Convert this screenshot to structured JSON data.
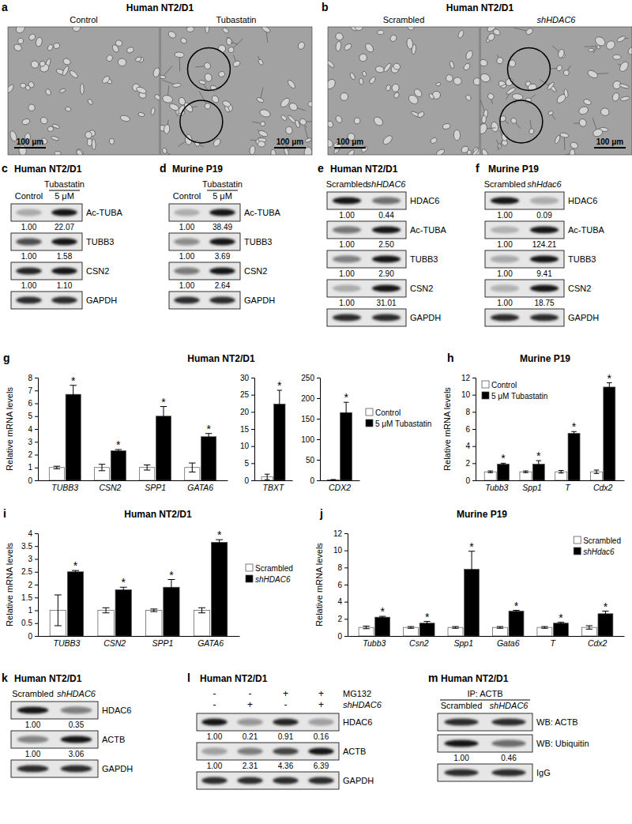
{
  "figure": {
    "images": [
      {
        "label": "a",
        "title": "Human NT2/D1",
        "frames": [
          {
            "caption": "Control",
            "scale_bar": "100 μm"
          },
          {
            "caption": "Tubastatin",
            "scale_bar": "100 μm"
          }
        ]
      },
      {
        "label": "b",
        "title": "Human NT2/D1",
        "frames": [
          {
            "caption": "Scrambled",
            "scale_bar": "100 μm"
          },
          {
            "caption": "shHDAC6",
            "scale_bar": "100 μm"
          }
        ]
      }
    ],
    "blots": [
      {
        "label": "c",
        "title": "Human NT2/D1",
        "lane_groups": [
          {
            "text": null,
            "lanes": [
              "Control"
            ]
          },
          {
            "text": "Tubastatin",
            "lanes": [
              "5 μM"
            ]
          }
        ],
        "rows": [
          {
            "name": "Ac-TUBA",
            "values": [
              1.0,
              22.07
            ],
            "value_labels": [
              "1.00",
              "22.07"
            ]
          },
          {
            "name": "TUBB3",
            "values": [
              1.0,
              1.58
            ],
            "value_labels": [
              "1.00",
              "1.58"
            ]
          },
          {
            "name": "CSN2",
            "values": [
              1.0,
              1.1
            ],
            "value_labels": [
              "1.00",
              "1.10"
            ]
          },
          {
            "name": "GAPDH"
          }
        ]
      },
      {
        "label": "d",
        "title": "Murine P19",
        "lane_groups": [
          {
            "text": null,
            "lanes": [
              "Control"
            ]
          },
          {
            "text": "Tubastatin",
            "lanes": [
              "5 μM"
            ]
          }
        ],
        "rows": [
          {
            "name": "Ac-TUBA",
            "values": [
              1.0,
              38.49
            ],
            "value_labels": [
              "1.00",
              "38.49"
            ]
          },
          {
            "name": "TUBB3",
            "values": [
              1.0,
              3.69
            ],
            "value_labels": [
              "1.00",
              "3.69"
            ]
          },
          {
            "name": "CSN2",
            "values": [
              1.0,
              2.64
            ],
            "value_labels": [
              "1.00",
              "2.64"
            ]
          },
          {
            "name": "GAPDH"
          }
        ]
      },
      {
        "label": "e",
        "title": "Human NT2/D1",
        "lane_groups": [
          {
            "text": null,
            "lanes": [
              "Scrambled",
              "shHDAC6"
            ]
          }
        ],
        "rows": [
          {
            "name": "HDAC6",
            "values": [
              1.0,
              0.44
            ],
            "value_labels": [
              "1.00",
              "0.44"
            ]
          },
          {
            "name": "Ac-TUBA",
            "values": [
              1.0,
              2.5
            ],
            "value_labels": [
              "1.00",
              "2.50"
            ]
          },
          {
            "name": "TUBB3",
            "values": [
              1.0,
              2.9
            ],
            "value_labels": [
              "1.00",
              "2.90"
            ]
          },
          {
            "name": "CSN2",
            "values": [
              1.0,
              31.01
            ],
            "value_labels": [
              "1.00",
              "31.01"
            ]
          },
          {
            "name": "GAPDH"
          }
        ]
      },
      {
        "label": "f",
        "title": "Murine P19",
        "lane_groups": [
          {
            "text": null,
            "lanes": [
              "Scrambled",
              "shHdac6"
            ]
          }
        ],
        "rows": [
          {
            "name": "HDAC6",
            "values": [
              1.0,
              0.09
            ],
            "value_labels": [
              "1.00",
              "0.09"
            ]
          },
          {
            "name": "Ac-TUBA",
            "values": [
              1.0,
              124.21
            ],
            "value_labels": [
              "1.00",
              "124.21"
            ]
          },
          {
            "name": "TUBB3",
            "values": [
              1.0,
              9.41
            ],
            "value_labels": [
              "1.00",
              "9.41"
            ]
          },
          {
            "name": "CSN2",
            "values": [
              1.0,
              18.75
            ],
            "value_labels": [
              "1.00",
              "18.75"
            ]
          },
          {
            "name": "GAPDH"
          }
        ]
      },
      {
        "label": "k",
        "title": "Human NT2/D1",
        "lane_groups": [
          {
            "text": null,
            "lanes": [
              "Scrambled",
              "shHDAC6"
            ]
          }
        ],
        "rows": [
          {
            "name": "HDAC6",
            "values": [
              1.0,
              0.35
            ],
            "value_labels": [
              "1.00",
              "0.35"
            ]
          },
          {
            "name": "ACTB",
            "values": [
              1.0,
              3.06
            ],
            "value_labels": [
              "1.00",
              "3.06"
            ]
          },
          {
            "name": "GAPDH"
          }
        ]
      },
      {
        "label": "l",
        "title": "Human NT2/D1",
        "conditions": [
          {
            "name": "MG132",
            "signs": [
              "-",
              "-",
              "+",
              "+"
            ]
          },
          {
            "name": "shHDAC6",
            "signs": [
              "-",
              "+",
              "-",
              "+"
            ]
          }
        ],
        "rows": [
          {
            "name": "HDAC6",
            "values": [
              1.0,
              0.21,
              0.91,
              0.16
            ],
            "value_labels": [
              "1.00",
              "0.21",
              "0.91",
              "0.16"
            ]
          },
          {
            "name": "ACTB",
            "values": [
              1.0,
              2.31,
              4.36,
              6.39
            ],
            "value_labels": [
              "1.00",
              "2.31",
              "4.36",
              "6.39"
            ]
          },
          {
            "name": "GAPDH"
          }
        ]
      },
      {
        "label": "m",
        "title": "Human NT2/D1",
        "lane_groups": [
          {
            "text": "IP: ACTB",
            "lanes": [
              "Scrambled",
              "shHDAC6"
            ]
          }
        ],
        "rows": [
          {
            "name": "WB: ACTB"
          },
          {
            "name": "WB: Ubiquitin",
            "values": [
              1.0,
              0.46
            ],
            "value_labels": [
              "1.00",
              "0.46"
            ]
          },
          {
            "name": "IgG"
          }
        ]
      }
    ]
  },
  "chart_data": [
    {
      "type": "bar",
      "label": "g",
      "title": "Human NT2/D1",
      "y_label": "Relative mRNA levels",
      "categories": [
        "TUBB3",
        "CSN2",
        "SPP1",
        "GATA6"
      ],
      "ylim": [
        0,
        8
      ],
      "yticks": [
        0,
        1,
        2,
        3,
        4,
        5,
        6,
        7,
        8
      ],
      "series": [
        {
          "color": "#ffffff",
          "values": [
            1,
            1,
            1,
            1
          ],
          "errors": [
            0.1,
            0.25,
            0.2,
            0.35
          ]
        },
        {
          "color": "#000000",
          "values": [
            6.7,
            2.3,
            5.0,
            3.4
          ],
          "errors": [
            0.7,
            0.1,
            0.75,
            0.25
          ],
          "annotations": [
            "*",
            "*",
            "*",
            "*"
          ]
        }
      ]
    },
    {
      "type": "bar",
      "categories": [
        "TBXT"
      ],
      "ylim": [
        0,
        30
      ],
      "yticks": [
        0,
        5,
        10,
        15,
        20,
        25,
        30
      ],
      "series": [
        {
          "color": "#ffffff",
          "values": [
            1
          ],
          "errors": [
            0.8
          ]
        },
        {
          "color": "#000000",
          "values": [
            22.3
          ],
          "errors": [
            4
          ],
          "annotations": [
            "*"
          ]
        }
      ]
    },
    {
      "type": "bar",
      "categories": [
        "CDX2"
      ],
      "ylim": [
        0,
        250
      ],
      "yticks": [
        0,
        50,
        100,
        150,
        200,
        250
      ],
      "legend": "right",
      "series": [
        {
          "name": "Control",
          "color": "#ffffff",
          "values": [
            1
          ],
          "errors": [
            1
          ]
        },
        {
          "name": "5 μM Tubastatin",
          "color": "#000000",
          "values": [
            165
          ],
          "errors": [
            25
          ],
          "annotations": [
            "*"
          ]
        }
      ]
    },
    {
      "type": "bar",
      "label": "h",
      "title": "Murine P19",
      "y_label": "Relative mRNA levels",
      "legend": "upper left",
      "categories": [
        "Tubb3",
        "Spp1",
        "T",
        "Cdx2"
      ],
      "ylim": [
        0,
        12
      ],
      "yticks": [
        0,
        2,
        4,
        6,
        8,
        10,
        12
      ],
      "series": [
        {
          "name": "Control",
          "color": "#ffffff",
          "values": [
            1,
            1,
            1,
            1
          ],
          "errors": [
            0.1,
            0.1,
            0.15,
            0.2
          ]
        },
        {
          "name": "5 μM Tubastatin",
          "color": "#000000",
          "values": [
            1.9,
            1.9,
            5.5,
            10.9
          ],
          "errors": [
            0.1,
            0.4,
            0.2,
            0.5
          ],
          "annotations": [
            "*",
            "*",
            "*",
            "*"
          ]
        }
      ]
    },
    {
      "type": "bar",
      "label": "i",
      "title": "Human NT2/D1",
      "y_label": "Relative mRNA levels",
      "legend": "right",
      "categories": [
        "TUBB3",
        "CSN2",
        "SPP1",
        "GATA6"
      ],
      "ylim": [
        0,
        4
      ],
      "yticks": [
        0,
        0.5,
        1,
        1.5,
        2,
        2.5,
        3,
        3.5,
        4
      ],
      "series": [
        {
          "name": "Scrambled",
          "color": "#ffffff",
          "values": [
            1,
            1,
            1,
            1
          ],
          "errors": [
            0.6,
            0.1,
            0.05,
            0.1
          ]
        },
        {
          "name": "shHDAC6",
          "color": "#000000",
          "values": [
            2.5,
            1.8,
            1.9,
            3.65
          ],
          "errors": [
            0.05,
            0.1,
            0.3,
            0.1
          ],
          "annotations": [
            "*",
            "*",
            "*",
            "*"
          ]
        }
      ]
    },
    {
      "type": "bar",
      "label": "j",
      "title": "Murine P19",
      "y_label": "Relative mRNA levels",
      "legend": "upper right",
      "categories": [
        "Tubb3",
        "Csn2",
        "Spp1",
        "Gata6",
        "T",
        "Cdx2"
      ],
      "ylim": [
        0,
        12
      ],
      "yticks": [
        0,
        2,
        4,
        6,
        8,
        10,
        12
      ],
      "series": [
        {
          "name": "Scrambled",
          "color": "#ffffff",
          "values": [
            1,
            1,
            1,
            1,
            1,
            1
          ],
          "errors": [
            0.15,
            0.1,
            0.1,
            0.1,
            0.1,
            0.2
          ]
        },
        {
          "name": "shHdac6",
          "color": "#000000",
          "values": [
            2.2,
            1.5,
            7.8,
            2.9,
            1.5,
            2.6
          ],
          "errors": [
            0.1,
            0.2,
            2.1,
            0.1,
            0.1,
            0.3
          ],
          "annotations": [
            "*",
            "*",
            "*",
            "*",
            "*",
            "*"
          ]
        }
      ]
    }
  ]
}
